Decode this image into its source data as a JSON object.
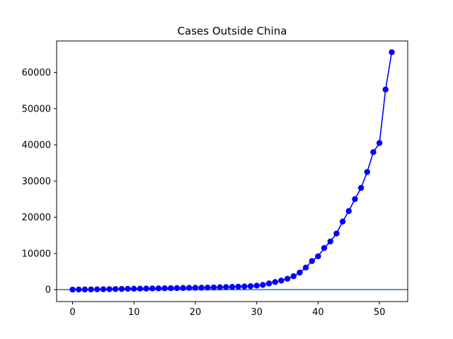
{
  "chart_data": {
    "type": "line",
    "title": "Cases Outside China",
    "xlabel": "",
    "ylabel": "",
    "xlim": [
      -2.6,
      54.6
    ],
    "ylim": [
      -3300,
      68700
    ],
    "xticks": [
      0,
      10,
      20,
      30,
      40,
      50
    ],
    "yticks": [
      0,
      10000,
      20000,
      30000,
      40000,
      50000,
      60000
    ],
    "grid": false,
    "series": [
      {
        "color": "#0000ff",
        "marker": "circle",
        "x": [
          0,
          1,
          2,
          3,
          4,
          5,
          6,
          7,
          8,
          9,
          10,
          11,
          12,
          13,
          14,
          15,
          16,
          17,
          18,
          19,
          20,
          21,
          22,
          23,
          24,
          25,
          26,
          27,
          28,
          29,
          30,
          31,
          32,
          33,
          34,
          35,
          36,
          37,
          38,
          39,
          40,
          41,
          42,
          43,
          44,
          45,
          46,
          47,
          48,
          49,
          50,
          51,
          52
        ],
        "y": [
          7,
          25,
          40,
          60,
          80,
          100,
          130,
          160,
          190,
          220,
          250,
          270,
          290,
          320,
          350,
          380,
          410,
          430,
          460,
          490,
          510,
          530,
          560,
          600,
          650,
          700,
          750,
          810,
          880,
          950,
          1100,
          1300,
          1700,
          2100,
          2500,
          3000,
          3700,
          4700,
          6100,
          7900,
          9200,
          11500,
          13300,
          15500,
          18800,
          21700,
          25000,
          28100,
          32500,
          38000,
          40500,
          55300,
          65600
        ]
      }
    ],
    "hline": {
      "y": 0,
      "color": "#1f77b4"
    }
  }
}
